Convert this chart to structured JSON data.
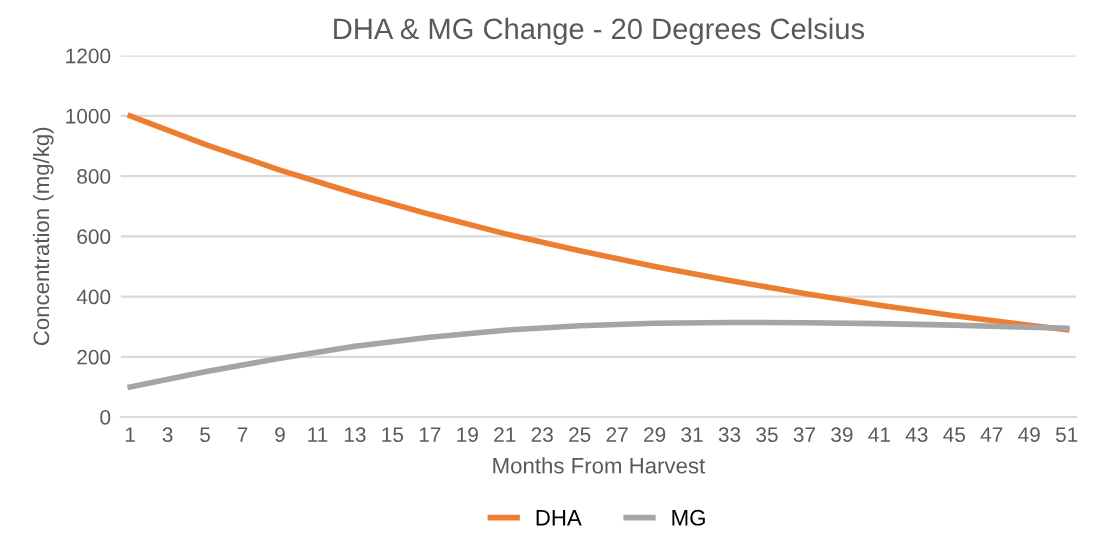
{
  "chart_data": {
    "type": "line",
    "title": "DHA & MG Change - 20 Degrees Celsius",
    "xlabel": "Months From Harvest",
    "ylabel": "Concentration (mg/kg)",
    "x": [
      1,
      5,
      9,
      13,
      17,
      21,
      25,
      29,
      33,
      37,
      41,
      45,
      49,
      51
    ],
    "series": [
      {
        "name": "DHA",
        "color": "#ed7d31",
        "values": [
          1000,
          905,
          820,
          743,
          673,
          609,
          552,
          500,
          453,
          410,
          371,
          336,
          305,
          290
        ]
      },
      {
        "name": "MG",
        "color": "#a5a5a5",
        "values": [
          100,
          150,
          195,
          235,
          265,
          288,
          303,
          311,
          314,
          313,
          310,
          305,
          298,
          295
        ]
      }
    ],
    "xlim": [
      0.5,
      51.5
    ],
    "xticks": [
      1,
      3,
      5,
      7,
      9,
      11,
      13,
      15,
      17,
      19,
      21,
      23,
      25,
      27,
      29,
      31,
      33,
      35,
      37,
      39,
      41,
      43,
      45,
      47,
      49,
      51
    ],
    "ylim": [
      0,
      1200
    ],
    "yticks": [
      0,
      200,
      400,
      600,
      800,
      1000,
      1200
    ],
    "grid": "y",
    "legend": "bottom",
    "marker": "none",
    "line_style": "solid"
  }
}
